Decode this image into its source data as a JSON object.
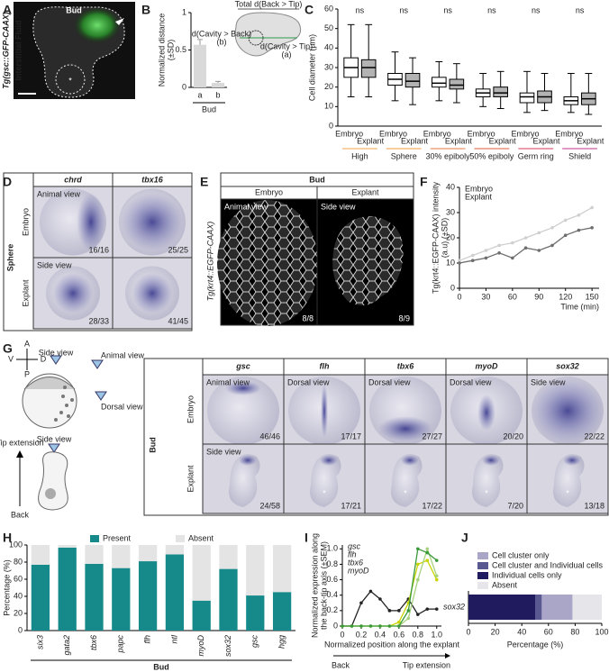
{
  "figure": {
    "panel_letters": [
      "A",
      "B",
      "C",
      "D",
      "E",
      "F",
      "G",
      "H",
      "I",
      "J"
    ],
    "panel_A": {
      "title": "Bud",
      "side_label": "Tg(gsc::GFP-CAAX)",
      "side_label_2": "Interstitial Fluid",
      "marker": "*"
    },
    "panel_D": {
      "columns": [
        "chrd",
        "tbx16"
      ],
      "stage": "Sphere",
      "rows": [
        "Embryo",
        "Explant"
      ],
      "views": [
        "Animal view",
        "Side view"
      ],
      "counts": [
        [
          "16/16",
          "25/25"
        ],
        [
          "28/33",
          "41/45"
        ]
      ]
    },
    "panel_E": {
      "stage": "Bud",
      "columns": [
        "Embryo",
        "Explant"
      ],
      "views": [
        "Animal view",
        "Side view"
      ],
      "counts": [
        "8/8",
        "8/9"
      ],
      "side_label": "Tg(krt4::EGFP-CAAX)"
    },
    "panel_G": {
      "schematic": {
        "axes": [
          "A",
          "P",
          "V",
          "D"
        ],
        "views": [
          "Side view",
          "Animal view",
          "Dorsal view",
          "Side view"
        ],
        "arrow_top": "Tip extension",
        "arrow_bottom": "Back"
      },
      "stage": "Bud",
      "rows": [
        "Embryo",
        "Explant"
      ],
      "columns": [
        "gsc",
        "flh",
        "tbx6",
        "myoD",
        "sox32"
      ],
      "embryo_views": [
        "Animal view",
        "Dorsal view",
        "Dorsal view",
        "Dorsal view",
        "Side view"
      ],
      "explant_view": "Side view",
      "counts": [
        [
          "46/46",
          "17/17",
          "27/27",
          "20/20",
          "22/22"
        ],
        [
          "24/58",
          "17/21",
          "17/22",
          "7/20",
          "13/18"
        ]
      ],
      "marker": "*"
    }
  },
  "chart_data": [
    {
      "type": "bar",
      "categories": [
        "a",
        "b"
      ],
      "values": [
        0.57,
        0.06
      ],
      "errors": [
        0.07,
        0.02
      ],
      "color": "#d9d9d9",
      "ylim": [
        0,
        1
      ],
      "yticks": [
        0,
        0.5,
        1
      ],
      "y_label": [
        "Normalized distance",
        "(±SD)"
      ],
      "x_label": "Bud",
      "annotations": [
        "Total d(Back > Tip)",
        "d(Cavity > Back)",
        "(b)",
        "d(Cavity > Tip)",
        "(a)"
      ]
    },
    {
      "type": "box",
      "y_label": "Cell diameter (µm)",
      "ylim": [
        0,
        60
      ],
      "yticks": [
        0,
        10,
        20,
        30,
        40,
        50,
        60
      ],
      "categories": [
        "Embryo",
        "Explant",
        "Embryo",
        "Explant",
        "Embryo",
        "Explant",
        "Embryo",
        "Explant",
        "Embryo",
        "Explant",
        "Embryo",
        "Explant"
      ],
      "colors": [
        "#ffffff",
        "#b3b3b3"
      ],
      "groups": [
        {
          "name": "High",
          "color": "#f2a444"
        },
        {
          "name": "Sphere",
          "color": "#f09a38"
        },
        {
          "name": "30% epiboly",
          "color": "#e6743c"
        },
        {
          "name": "50% epiboly",
          "color": "#de5a3a"
        },
        {
          "name": "Germ ring",
          "color": "#d63a5c"
        },
        {
          "name": "Shield",
          "color": "#c0308a"
        }
      ],
      "significance": [
        "ns",
        "ns",
        "ns",
        "ns",
        "ns",
        "ns"
      ],
      "boxes": [
        {
          "min": 15,
          "q1": 25,
          "median": 30,
          "q3": 35,
          "max": 52
        },
        {
          "min": 15,
          "q1": 25,
          "median": 30,
          "q3": 34,
          "max": 52
        },
        {
          "min": 13,
          "q1": 21,
          "median": 24,
          "q3": 27,
          "max": 38
        },
        {
          "min": 11,
          "q1": 20,
          "median": 23,
          "q3": 27,
          "max": 35
        },
        {
          "min": 13,
          "q1": 20,
          "median": 22,
          "q3": 25,
          "max": 33
        },
        {
          "min": 12,
          "q1": 19,
          "median": 21,
          "q3": 24,
          "max": 32
        },
        {
          "min": 10,
          "q1": 15,
          "median": 17,
          "q3": 19,
          "max": 27
        },
        {
          "min": 9,
          "q1": 15,
          "median": 17,
          "q3": 20,
          "max": 28
        },
        {
          "min": 7,
          "q1": 12,
          "median": 15,
          "q3": 17,
          "max": 28
        },
        {
          "min": 8,
          "q1": 12,
          "median": 15,
          "q3": 18,
          "max": 27
        },
        {
          "min": 7,
          "q1": 11,
          "median": 13,
          "q3": 15,
          "max": 27
        },
        {
          "min": 6,
          "q1": 11,
          "median": 14,
          "q3": 17,
          "max": 27
        }
      ]
    },
    {
      "type": "line",
      "x": [
        0,
        15,
        30,
        45,
        60,
        75,
        90,
        105,
        120,
        135,
        150
      ],
      "xlim": [
        0,
        158
      ],
      "xticks": [
        0,
        30,
        60,
        90,
        120,
        150
      ],
      "ylim": [
        0,
        40
      ],
      "yticks": [
        0,
        10,
        20,
        30,
        40
      ],
      "x_label": "Time (min)",
      "y_label": [
        "Tg(krt4::EGFP-CAAX) intensity",
        "(a.u) (±SD)"
      ],
      "series": [
        {
          "name": "Embryo",
          "color": "#cfcfcf",
          "values": [
            11,
            13,
            15,
            17,
            18,
            20,
            22,
            24,
            27,
            29,
            32
          ]
        },
        {
          "name": "Explant",
          "color": "#6e6e6e",
          "values": [
            10,
            11,
            12,
            14,
            12,
            16,
            15,
            17,
            21,
            23,
            24
          ]
        }
      ]
    },
    {
      "type": "stacked_bar",
      "categories": [
        "six3",
        "gata2",
        "tbx6",
        "papc",
        "flh",
        "ntl",
        "myoD",
        "sox32",
        "gsc",
        "hgg"
      ],
      "ylim": [
        0,
        100
      ],
      "yticks": [
        0,
        20,
        40,
        60,
        80,
        100
      ],
      "y_label": "Percentage (%)",
      "x_label": "Bud",
      "series": [
        {
          "name": "Present",
          "color": "#168a8a",
          "values": [
            77,
            97,
            78,
            73,
            81,
            89,
            35,
            72,
            41,
            45
          ]
        },
        {
          "name": "Absent",
          "color": "#e4e4e4",
          "values": [
            23,
            3,
            22,
            27,
            19,
            11,
            65,
            28,
            59,
            55
          ]
        }
      ]
    },
    {
      "type": "line",
      "x": [
        0,
        0.1,
        0.2,
        0.3,
        0.4,
        0.5,
        0.6,
        0.7,
        0.8,
        0.9,
        1
      ],
      "xlim": [
        0,
        1.05
      ],
      "xticks": [
        0,
        0.2,
        0.4,
        0.6,
        0.8,
        {
          "value": 1,
          "label": "1.0"
        }
      ],
      "ylim": [
        0,
        1.05
      ],
      "yticks": [
        0,
        0.2,
        0.4,
        0.6,
        0.8,
        {
          "value": 1,
          "label": "1.0"
        }
      ],
      "x_label": "Normalized position along the explant",
      "y_label": [
        "Normalized expression along",
        "the back-tip axis (±SEM)"
      ],
      "arrow_labels": [
        "Back",
        "Tip extension"
      ],
      "series": [
        {
          "name": "gsc",
          "color": "#222222",
          "values": [
            0,
            0,
            0.3,
            0.45,
            0.35,
            0.2,
            0.2,
            0.35,
            0.15,
            0.22,
            0.22
          ]
        },
        {
          "name": "flh",
          "color": "#c8d400",
          "values": [
            0,
            0,
            0,
            0,
            0,
            0,
            0.05,
            0.3,
            0.8,
            0.85,
            0.6
          ]
        },
        {
          "name": "tbx6",
          "color": "#a6d27e",
          "values": [
            0,
            0,
            0,
            0,
            0,
            0,
            0,
            0.1,
            0.6,
            1,
            0.65
          ]
        },
        {
          "name": "myoD",
          "color": "#3a9a3a",
          "values": [
            0,
            0,
            0,
            0,
            0,
            0,
            0,
            0.2,
            1,
            0.95,
            0.85
          ]
        }
      ]
    },
    {
      "type": "stacked_barh",
      "categories": [
        "sox32"
      ],
      "xlim": [
        0,
        100
      ],
      "xticks": [
        0,
        20,
        40,
        60,
        80,
        100
      ],
      "x_label": "Percentage (%)",
      "legend_order": [
        2,
        1,
        0,
        3
      ],
      "series": [
        {
          "name": "Individual cells only",
          "color": "#1f1b5e",
          "values": [
            50
          ]
        },
        {
          "name": "Cell cluster and Individual cells",
          "color": "#5a5890",
          "values": [
            5
          ]
        },
        {
          "name": "Cell cluster only",
          "color": "#a9a6c8",
          "values": [
            23
          ]
        },
        {
          "name": "Absent",
          "color": "#e6e6ea",
          "values": [
            22
          ]
        }
      ]
    }
  ]
}
